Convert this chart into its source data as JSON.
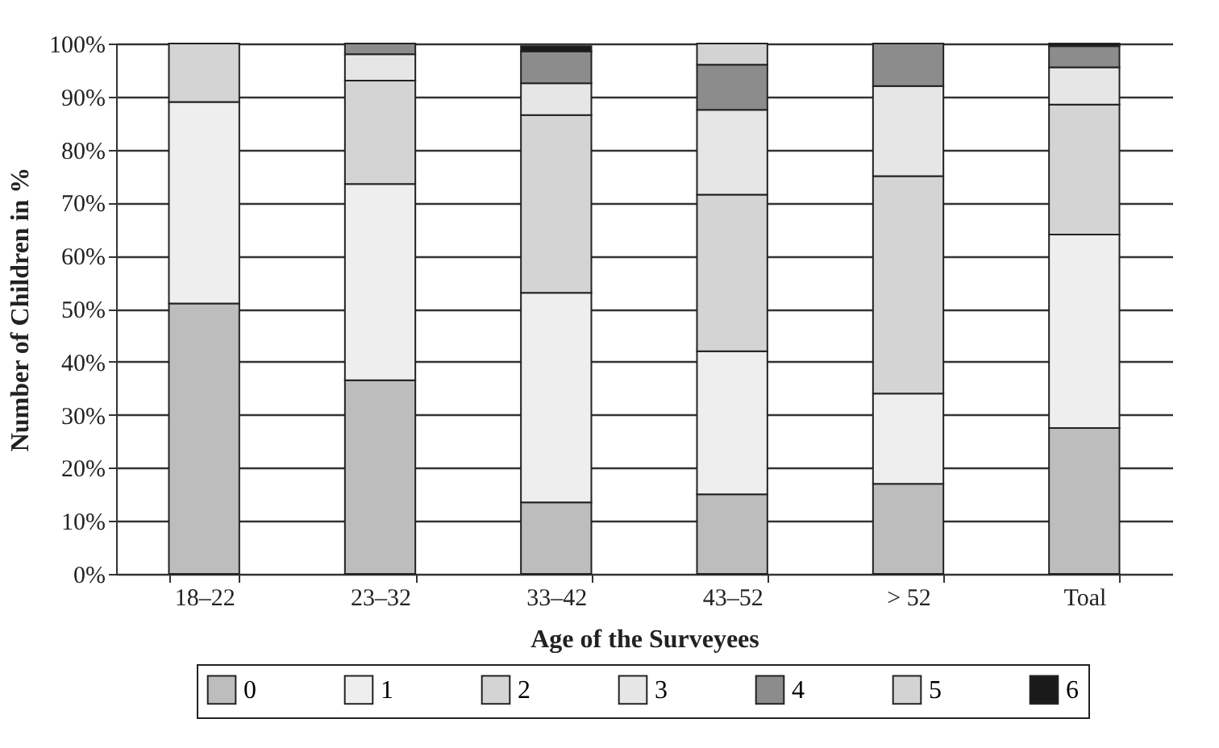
{
  "chart_data": {
    "type": "bar",
    "stacked": true,
    "xlabel": "Age of the Surveyees",
    "ylabel": "Number of Children in %",
    "categories": [
      "18–22",
      "23–32",
      "33–42",
      "43–52",
      "> 52",
      "Toal"
    ],
    "series": [
      {
        "name": "0",
        "color": "#bdbdbd",
        "values": [
          51,
          36.5,
          13.5,
          15,
          17,
          27.5
        ]
      },
      {
        "name": "1",
        "color": "#eeeeee",
        "values": [
          38,
          37,
          39.5,
          27,
          17,
          36.5
        ]
      },
      {
        "name": "2",
        "color": "#d4d4d4",
        "values": [
          11,
          19.5,
          33.5,
          29.5,
          41,
          24.5
        ]
      },
      {
        "name": "3",
        "color": "#e6e6e6",
        "values": [
          null,
          5,
          6,
          16,
          17,
          7
        ]
      },
      {
        "name": "4",
        "color": "#8c8c8c",
        "values": [
          null,
          2,
          6,
          8.5,
          8,
          4
        ]
      },
      {
        "name": "5",
        "color": "#d3d3d3",
        "values": [
          null,
          null,
          null,
          4,
          null,
          null
        ]
      },
      {
        "name": "6",
        "color": "#1a1a1a",
        "values": [
          null,
          null,
          1,
          null,
          null,
          0.5
        ]
      }
    ],
    "ylim": [
      0,
      100
    ],
    "yticks": [
      {
        "value": 0,
        "label": "0%"
      },
      {
        "value": 10,
        "label": "10%"
      },
      {
        "value": 20,
        "label": "20%"
      },
      {
        "value": 30,
        "label": "30%"
      },
      {
        "value": 40,
        "label": "40%"
      },
      {
        "value": 50,
        "label": "50%"
      },
      {
        "value": 60,
        "label": "60%"
      },
      {
        "value": 70,
        "label": "70%"
      },
      {
        "value": 80,
        "label": "80%"
      },
      {
        "value": 90,
        "label": "90%"
      },
      {
        "value": 100,
        "label": "100%"
      }
    ],
    "grid": "y",
    "legend": "bottom"
  }
}
